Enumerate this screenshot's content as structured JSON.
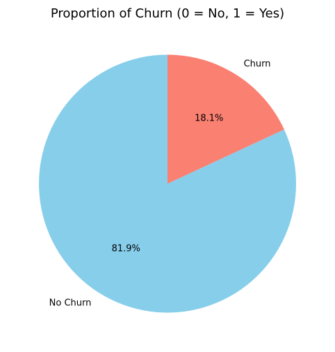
{
  "chart_data": {
    "type": "pie",
    "title": "Proportion of Churn (0 = No, 1 = Yes)",
    "slices": [
      {
        "label": "No Churn",
        "percent_label": "81.9%",
        "value": 81.9,
        "color": "#87ceeb"
      },
      {
        "label": "Churn",
        "percent_label": "18.1%",
        "value": 18.1,
        "color": "#fa8072"
      }
    ],
    "start_angle": 90,
    "direction": "counterclockwise"
  }
}
